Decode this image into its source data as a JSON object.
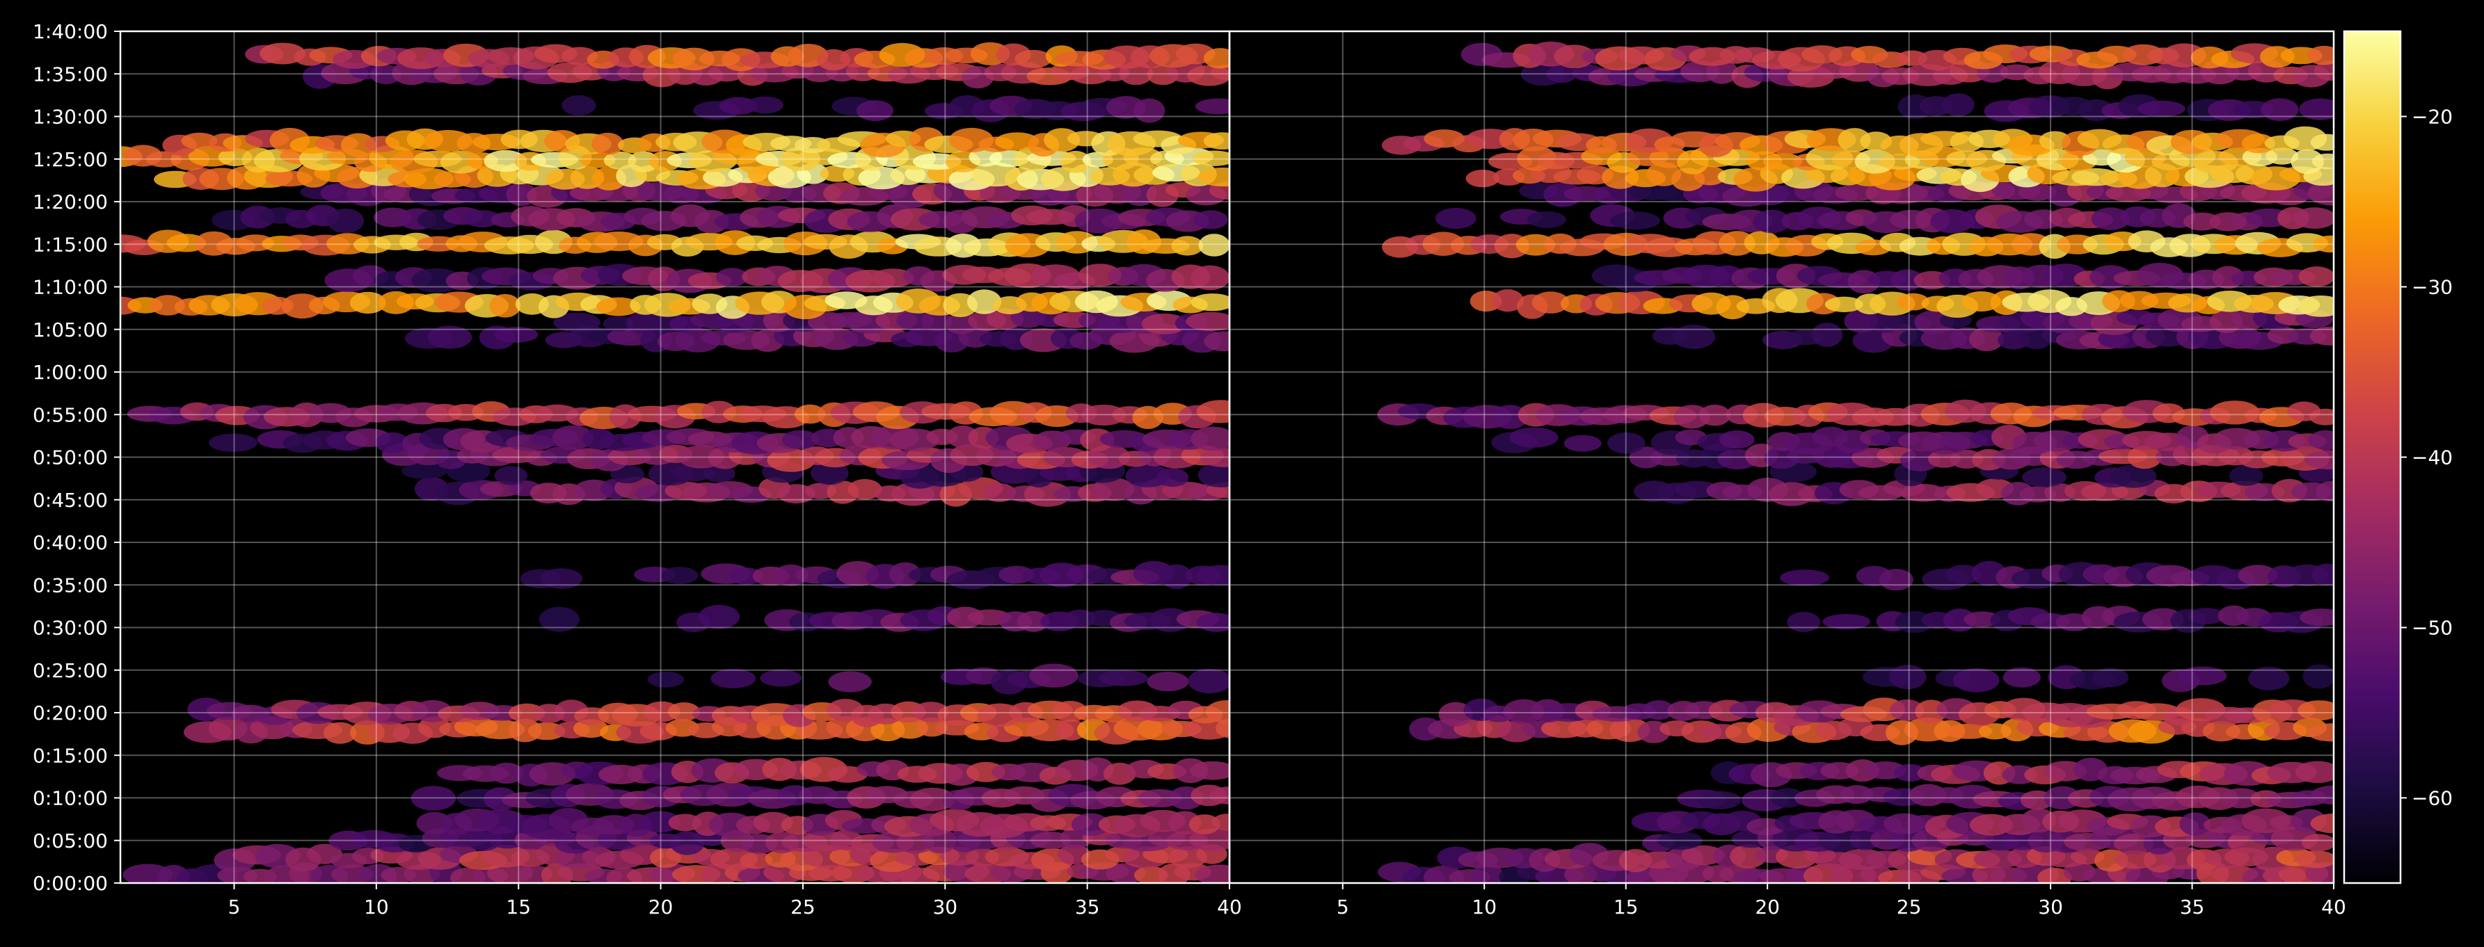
{
  "chart_data": {
    "type": "heatmap",
    "background": "#000000",
    "colormap": "inferno",
    "colormap_stops": [
      "#000004",
      "#1b0c41",
      "#4a0c6b",
      "#781c6d",
      "#a52c60",
      "#cf4446",
      "#ed6925",
      "#fb9b06",
      "#f7d13d",
      "#fcffa4"
    ],
    "grid": true,
    "ylim_seconds": [
      0,
      6000
    ],
    "ytick_labels": [
      "0:00:00",
      "0:05:00",
      "0:10:00",
      "0:15:00",
      "0:20:00",
      "0:25:00",
      "0:30:00",
      "0:35:00",
      "0:40:00",
      "0:45:00",
      "0:50:00",
      "0:55:00",
      "1:00:00",
      "1:05:00",
      "1:10:00",
      "1:15:00",
      "1:20:00",
      "1:25:00",
      "1:30:00",
      "1:35:00",
      "1:40:00"
    ],
    "panels": [
      {
        "xlim": [
          1,
          40
        ],
        "xtick_labels": [
          "5",
          "10",
          "15",
          "20",
          "25",
          "30",
          "35",
          "40"
        ],
        "xtick_values": [
          5,
          10,
          15,
          20,
          25,
          30,
          35,
          40
        ]
      },
      {
        "xlim": [
          1,
          40
        ],
        "xtick_labels": [
          "5",
          "10",
          "15",
          "20",
          "25",
          "30",
          "35",
          "40"
        ],
        "xtick_values": [
          5,
          10,
          15,
          20,
          25,
          30,
          35,
          40
        ]
      }
    ],
    "colorbar": {
      "range": [
        -65,
        -15
      ],
      "tick_values": [
        -20,
        -30,
        -40,
        -50,
        -60
      ],
      "tick_labels": [
        "−20",
        "−30",
        "−40",
        "−50",
        "−60"
      ]
    },
    "bands": [
      {
        "time": "0:01:00",
        "start": 2,
        "peak": -38
      },
      {
        "time": "0:03:00",
        "start": 5,
        "peak": -33
      },
      {
        "time": "0:05:00",
        "start": 9,
        "peak": -43
      },
      {
        "time": "0:07:00",
        "start": 12,
        "peak": -40
      },
      {
        "time": "0:10:00",
        "start": 12,
        "peak": -42
      },
      {
        "time": "0:13:00",
        "start": 13,
        "peak": -38
      },
      {
        "time": "0:18:00",
        "start": 4,
        "peak": -28
      },
      {
        "time": "0:20:00",
        "start": 4,
        "peak": -34
      },
      {
        "time": "0:24:00",
        "start": 13,
        "peak": -52
      },
      {
        "time": "0:31:00",
        "start": 14,
        "peak": -47
      },
      {
        "time": "0:36:00",
        "start": 11,
        "peak": -48
      },
      {
        "time": "0:46:00",
        "start": 12,
        "peak": -38
      },
      {
        "time": "0:48:00",
        "start": 2,
        "peak": -55
      },
      {
        "time": "0:50:00",
        "start": 11,
        "peak": -38
      },
      {
        "time": "0:52:00",
        "start": 5,
        "peak": -43
      },
      {
        "time": "0:55:00",
        "start": 2,
        "peak": -32
      },
      {
        "time": "1:04:00",
        "start": 11,
        "peak": -46
      },
      {
        "time": "1:06:00",
        "start": 17,
        "peak": -44
      },
      {
        "time": "1:08:00",
        "start": 1,
        "peak": -17
      },
      {
        "time": "1:11:00",
        "start": 9,
        "peak": -42
      },
      {
        "time": "1:15:00",
        "start": 1,
        "peak": -18
      },
      {
        "time": "1:18:00",
        "start": 5,
        "peak": -43
      },
      {
        "time": "1:21:00",
        "start": 8,
        "peak": -40
      },
      {
        "time": "1:23:00",
        "start": 3,
        "peak": -15
      },
      {
        "time": "1:25:00",
        "start": 1,
        "peak": -15
      },
      {
        "time": "1:27:00",
        "start": 3,
        "peak": -20
      },
      {
        "time": "1:31:00",
        "start": 14,
        "peak": -52
      },
      {
        "time": "1:35:00",
        "start": 8,
        "peak": -36
      },
      {
        "time": "1:37:00",
        "start": 6,
        "peak": -28
      }
    ]
  }
}
